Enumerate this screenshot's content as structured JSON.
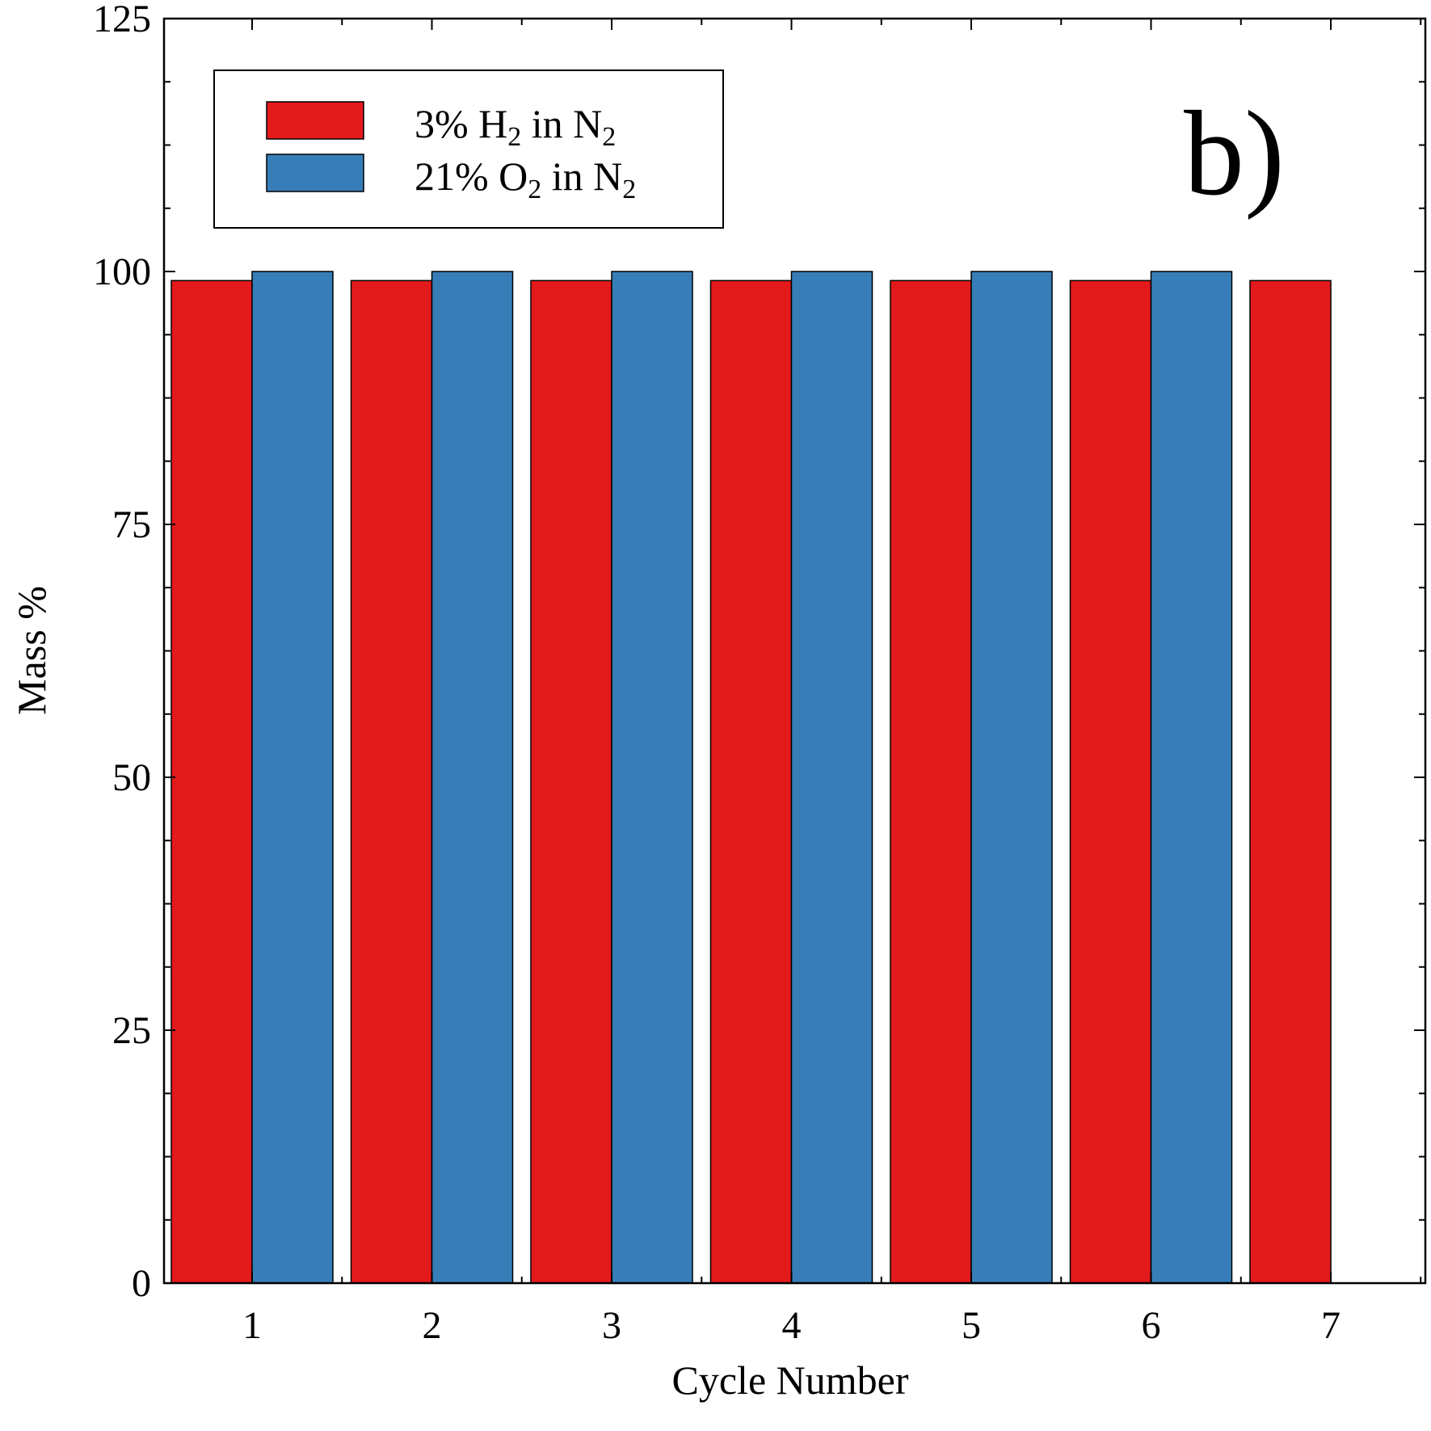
{
  "chart_data": {
    "type": "bar",
    "panel_label": "b)",
    "categories": [
      "1",
      "2",
      "3",
      "4",
      "5",
      "6",
      "7"
    ],
    "series": [
      {
        "name": "3% H₂ in N₂",
        "label_parts": [
          "3% H",
          "2",
          " in N",
          "2"
        ],
        "color": "#e31a1c",
        "values": [
          99.1,
          99.1,
          99.1,
          99.1,
          99.1,
          99.1,
          99.1
        ]
      },
      {
        "name": "21% O₂ in N₂",
        "label_parts": [
          "21% O",
          "2",
          " in N",
          "2"
        ],
        "color": "#377eb8",
        "values": [
          100.0,
          100.0,
          100.0,
          100.0,
          100.0,
          100.0,
          null
        ]
      }
    ],
    "xlabel": "Cycle Number",
    "ylabel": "Mass %",
    "ylim": [
      0,
      125
    ],
    "yticks": [
      "0",
      "25",
      "50",
      "75",
      "100",
      "125"
    ],
    "grid": false,
    "legend_position": "top-left"
  }
}
